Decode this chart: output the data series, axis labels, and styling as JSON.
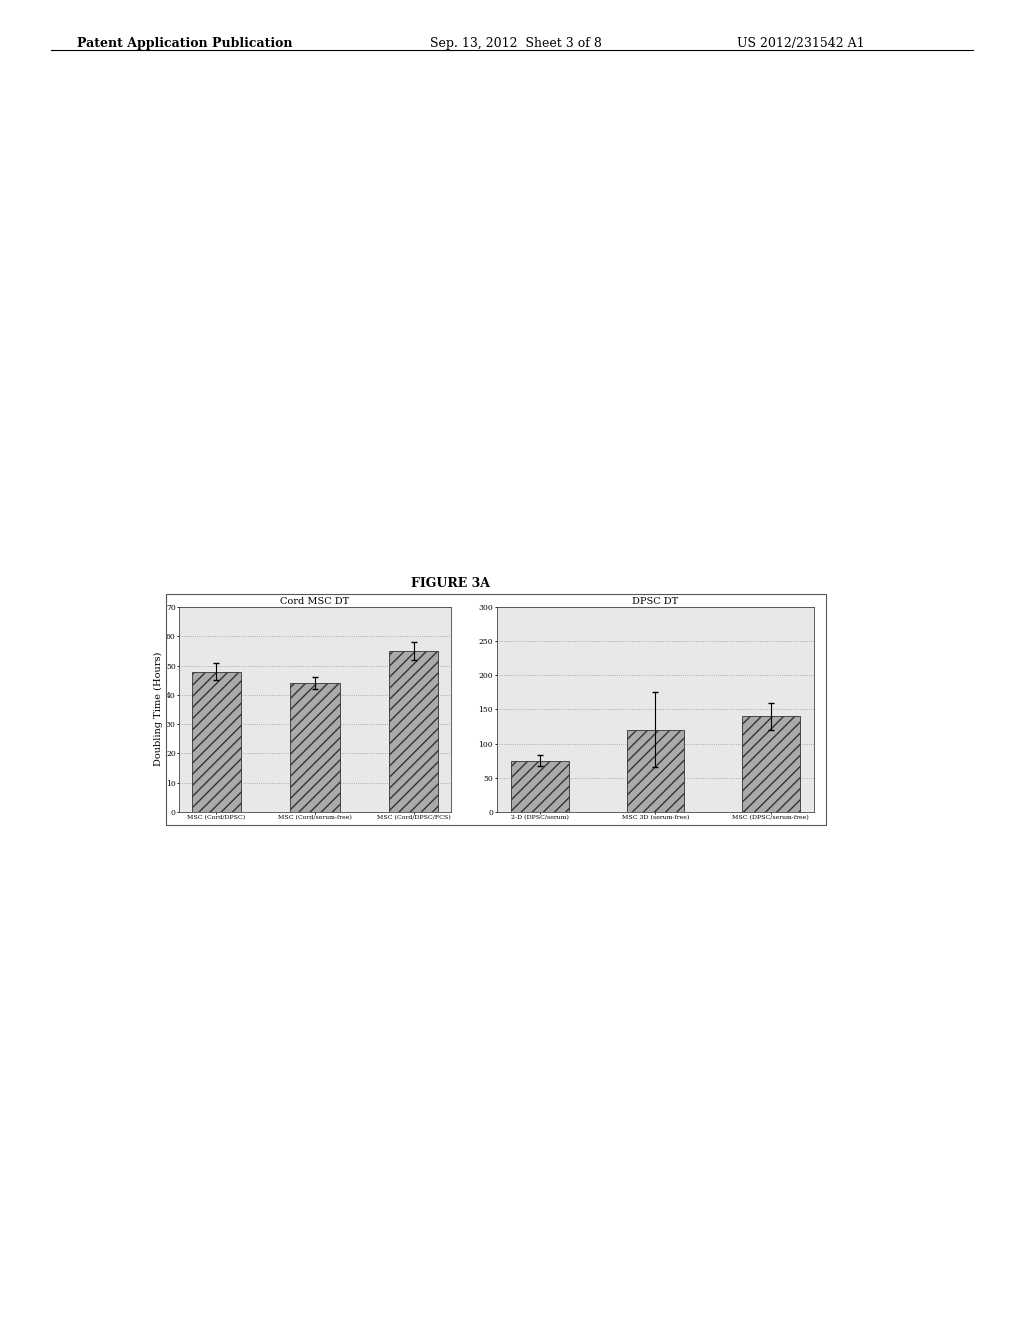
{
  "figure_title": "FIGURE 3A",
  "ylabel": "Doubling Time (Hours)",
  "left_chart": {
    "title": "Cord MSC DT",
    "categories": [
      "MSC (Cord/DPSC)",
      "MSC (Cord/serum-free)",
      "MSC (Cord/DPSC/FCS)"
    ],
    "values": [
      48,
      44,
      55
    ],
    "errors": [
      3,
      2,
      3
    ],
    "ylim": [
      0,
      70
    ],
    "yticks": [
      0,
      10,
      20,
      30,
      40,
      50,
      60,
      70
    ]
  },
  "right_chart": {
    "title": "DPSC DT",
    "categories": [
      "2-D (DPSC/serum)",
      "MSC 3D (serum-free)",
      "MSC (DPSC/serum-free)"
    ],
    "values": [
      75,
      120,
      140
    ],
    "errors": [
      8,
      55,
      20
    ],
    "ylim": [
      0,
      300
    ],
    "yticks": [
      0,
      50,
      100,
      150,
      200,
      250,
      300
    ]
  },
  "bar_color": "#888888",
  "bar_hatch": "///",
  "background_color": "#ffffff",
  "chart_bg": "#e8e8e8",
  "grid_color": "#999999",
  "header_left": "Patent Application Publication",
  "header_mid": "Sep. 13, 2012  Sheet 3 of 8",
  "header_right": "US 2012/231542 A1"
}
